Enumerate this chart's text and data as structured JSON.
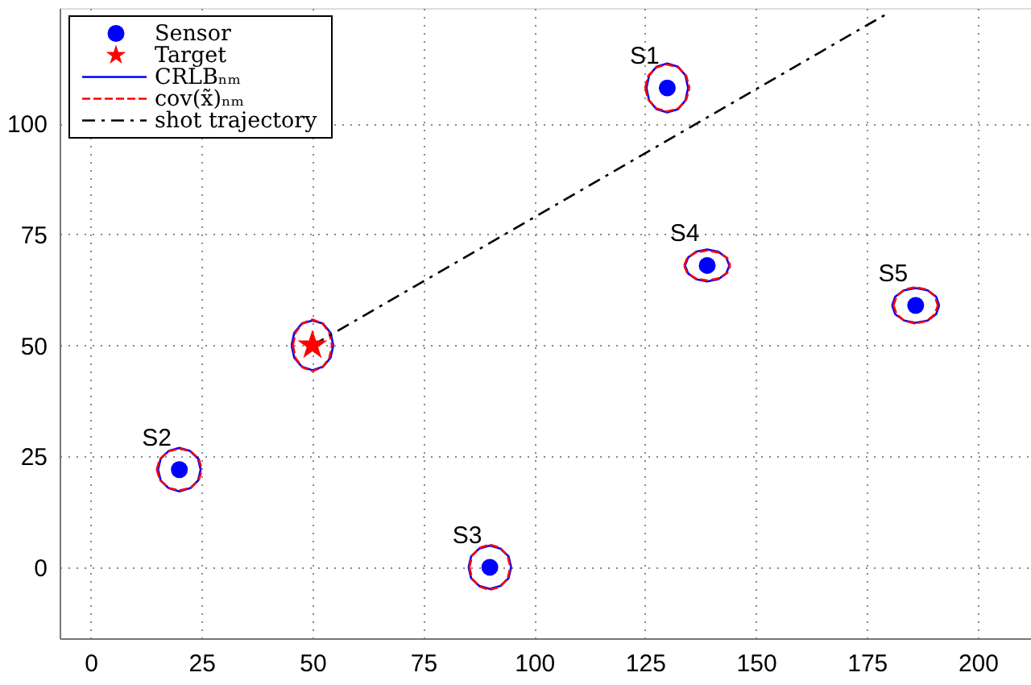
{
  "chart_data": {
    "type": "scatter",
    "xlim": [
      -7,
      212
    ],
    "ylim": [
      -16,
      126
    ],
    "xticks": [
      0,
      25,
      50,
      75,
      100,
      125,
      150,
      175,
      200
    ],
    "yticks": [
      0,
      25,
      50,
      75,
      100
    ],
    "grid": true,
    "legend": "top left",
    "series": [
      {
        "name": "CRLBₙₘ",
        "type": "line",
        "line_style": "solid",
        "color": "#0000ff",
        "x": [
          125.3,
          125.9,
          127.6,
          130,
          132.4,
          134.1,
          134.7,
          null,
          125.3,
          125.9,
          127.6,
          130,
          132.4,
          134.1,
          134.7
        ],
        "values": [
          108,
          110.8,
          112.8,
          113.5,
          112.8,
          110.8,
          108,
          null,
          108,
          105.2,
          103.2,
          102.5,
          103.2,
          105.2,
          108
        ]
      },
      {
        "type": "line",
        "line_style": "solid",
        "color": "#0000ff",
        "x": [
          15.2,
          15.8,
          17.6,
          20,
          22.4,
          24.2,
          24.8,
          null,
          15.2,
          15.8,
          17.6,
          20,
          22.4,
          24.2,
          24.8
        ],
        "values": [
          22,
          24.5,
          26.2,
          26.9,
          26.2,
          24.5,
          22,
          null,
          22,
          19.5,
          17.8,
          17.1,
          17.8,
          19.5,
          22
        ]
      },
      {
        "type": "line",
        "line_style": "solid",
        "color": "#0000ff",
        "x": [
          85.2,
          85.8,
          87.6,
          90,
          92.4,
          94.2,
          94.8,
          null,
          85.2,
          85.8,
          87.6,
          90,
          92.4,
          94.2,
          94.8
        ],
        "values": [
          0,
          2.5,
          4.2,
          4.9,
          4.2,
          2.5,
          0,
          null,
          0,
          -2.5,
          -4.2,
          -4.9,
          -4.2,
          -2.5,
          0
        ]
      },
      {
        "type": "line",
        "line_style": "solid",
        "color": "#0000ff",
        "x": [
          134,
          134.7,
          136.5,
          139,
          141.5,
          143.3,
          144,
          null,
          134,
          134.7,
          136.5,
          139,
          141.5,
          143.3,
          144
        ],
        "values": [
          68,
          69.8,
          71.1,
          71.6,
          71.1,
          69.8,
          68,
          null,
          68,
          66.2,
          64.9,
          64.4,
          64.9,
          66.2,
          68
        ]
      },
      {
        "type": "line",
        "line_style": "solid",
        "color": "#0000ff",
        "x": [
          180.7,
          181.4,
          183.4,
          186,
          188.7,
          190.6,
          191.3,
          null,
          180.7,
          181.4,
          183.4,
          186,
          188.7,
          190.6,
          191.3
        ],
        "values": [
          59,
          61,
          62.4,
          62.9,
          62.4,
          61,
          59,
          null,
          59,
          57,
          55.6,
          55.1,
          55.6,
          57,
          59
        ]
      },
      {
        "type": "line",
        "line_style": "solid",
        "color": "#0000ff",
        "x": [
          45.3,
          45.9,
          47.6,
          50,
          52.4,
          54.1,
          54.7,
          null,
          45.3,
          45.9,
          47.6,
          50,
          52.4,
          54.1,
          54.7
        ],
        "values": [
          50,
          52.8,
          54.9,
          55.6,
          54.9,
          52.8,
          50,
          null,
          50,
          47.2,
          45.2,
          44.4,
          45.2,
          47.2,
          50
        ]
      },
      {
        "name": "cov(x̃)ₙₘ",
        "type": "line",
        "line_style": "dashed",
        "color": "#ff0000",
        "x": [
          125,
          125.7,
          127.5,
          130,
          132.5,
          134.3,
          135,
          null,
          125,
          125.7,
          127.5,
          130,
          132.5,
          134.3,
          135
        ],
        "values": [
          108,
          110.7,
          112.6,
          113.3,
          112.6,
          110.7,
          108,
          null,
          108,
          105.4,
          103.4,
          102.7,
          103.4,
          105.4,
          108
        ]
      },
      {
        "type": "line",
        "line_style": "dashed",
        "color": "#ff0000",
        "x": [
          14.9,
          15.6,
          17.5,
          20,
          22.6,
          24.4,
          25.1,
          null,
          14.9,
          15.6,
          17.5,
          20,
          22.6,
          24.4,
          25.1
        ],
        "values": [
          22,
          24.4,
          26.1,
          26.7,
          26.1,
          24.4,
          22,
          null,
          22,
          19.7,
          17.9,
          17.3,
          17.9,
          19.7,
          22
        ]
      },
      {
        "type": "line",
        "line_style": "dashed",
        "color": "#ff0000",
        "x": [
          85.4,
          86,
          87.7,
          90,
          92.3,
          94,
          94.6,
          null,
          85.4,
          86,
          87.7,
          90,
          92.3,
          94,
          94.6
        ],
        "values": [
          0,
          2.6,
          4.4,
          5.1,
          4.4,
          2.6,
          0,
          null,
          0,
          -2.6,
          -4.4,
          -5.1,
          -4.4,
          -2.6,
          0
        ]
      },
      {
        "type": "line",
        "line_style": "dashed",
        "color": "#ff0000",
        "x": [
          133.8,
          134.5,
          136.4,
          139,
          141.6,
          143.5,
          144.2,
          null,
          133.8,
          134.5,
          136.4,
          139,
          141.6,
          143.5,
          144.2
        ],
        "values": [
          68,
          69.7,
          70.9,
          71.4,
          70.9,
          69.7,
          68,
          null,
          68,
          66.3,
          65.1,
          64.6,
          65.1,
          66.3,
          68
        ]
      },
      {
        "type": "line",
        "line_style": "dashed",
        "color": "#ff0000",
        "x": [
          181,
          181.7,
          183.5,
          186,
          188.5,
          190.3,
          191,
          null,
          181,
          181.7,
          183.5,
          186,
          188.5,
          190.3,
          191
        ],
        "values": [
          59,
          61.1,
          62.6,
          63.1,
          62.6,
          61.1,
          59,
          null,
          59,
          57,
          55.5,
          54.9,
          55.5,
          57,
          59
        ]
      },
      {
        "type": "line",
        "line_style": "dashed",
        "color": "#ff0000",
        "x": [
          45.6,
          46.2,
          47.8,
          50,
          52.2,
          53.8,
          54.4,
          null,
          45.6,
          46.2,
          47.8,
          50,
          52.2,
          53.8,
          54.4
        ],
        "values": [
          50,
          52.9,
          55,
          55.8,
          55,
          52.9,
          50,
          null,
          50,
          47.1,
          45,
          44.2,
          45,
          47.1,
          50
        ]
      },
      {
        "name": "shot trajectory",
        "type": "line",
        "line_style": "dashdot",
        "color": "#000000",
        "x": [
          50,
          180
        ],
        "values": [
          50,
          125
        ]
      },
      {
        "name": "Sensor",
        "type": "scatter",
        "marker": "circle",
        "color": "#0000ff",
        "x": [
          130,
          20,
          90,
          139,
          186
        ],
        "values": [
          108,
          22,
          0,
          68,
          59
        ]
      },
      {
        "name": "Target",
        "type": "scatter",
        "marker": "star",
        "color": "#ff0000",
        "x": [
          50
        ],
        "values": [
          50
        ]
      }
    ],
    "annotations": [
      {
        "text": "S1",
        "x": 130,
        "y": 108
      },
      {
        "text": "S2",
        "x": 20,
        "y": 22
      },
      {
        "text": "S3",
        "x": 90,
        "y": 0
      },
      {
        "text": "S4",
        "x": 139,
        "y": 68
      },
      {
        "text": "S5",
        "x": 186,
        "y": 59
      }
    ]
  }
}
